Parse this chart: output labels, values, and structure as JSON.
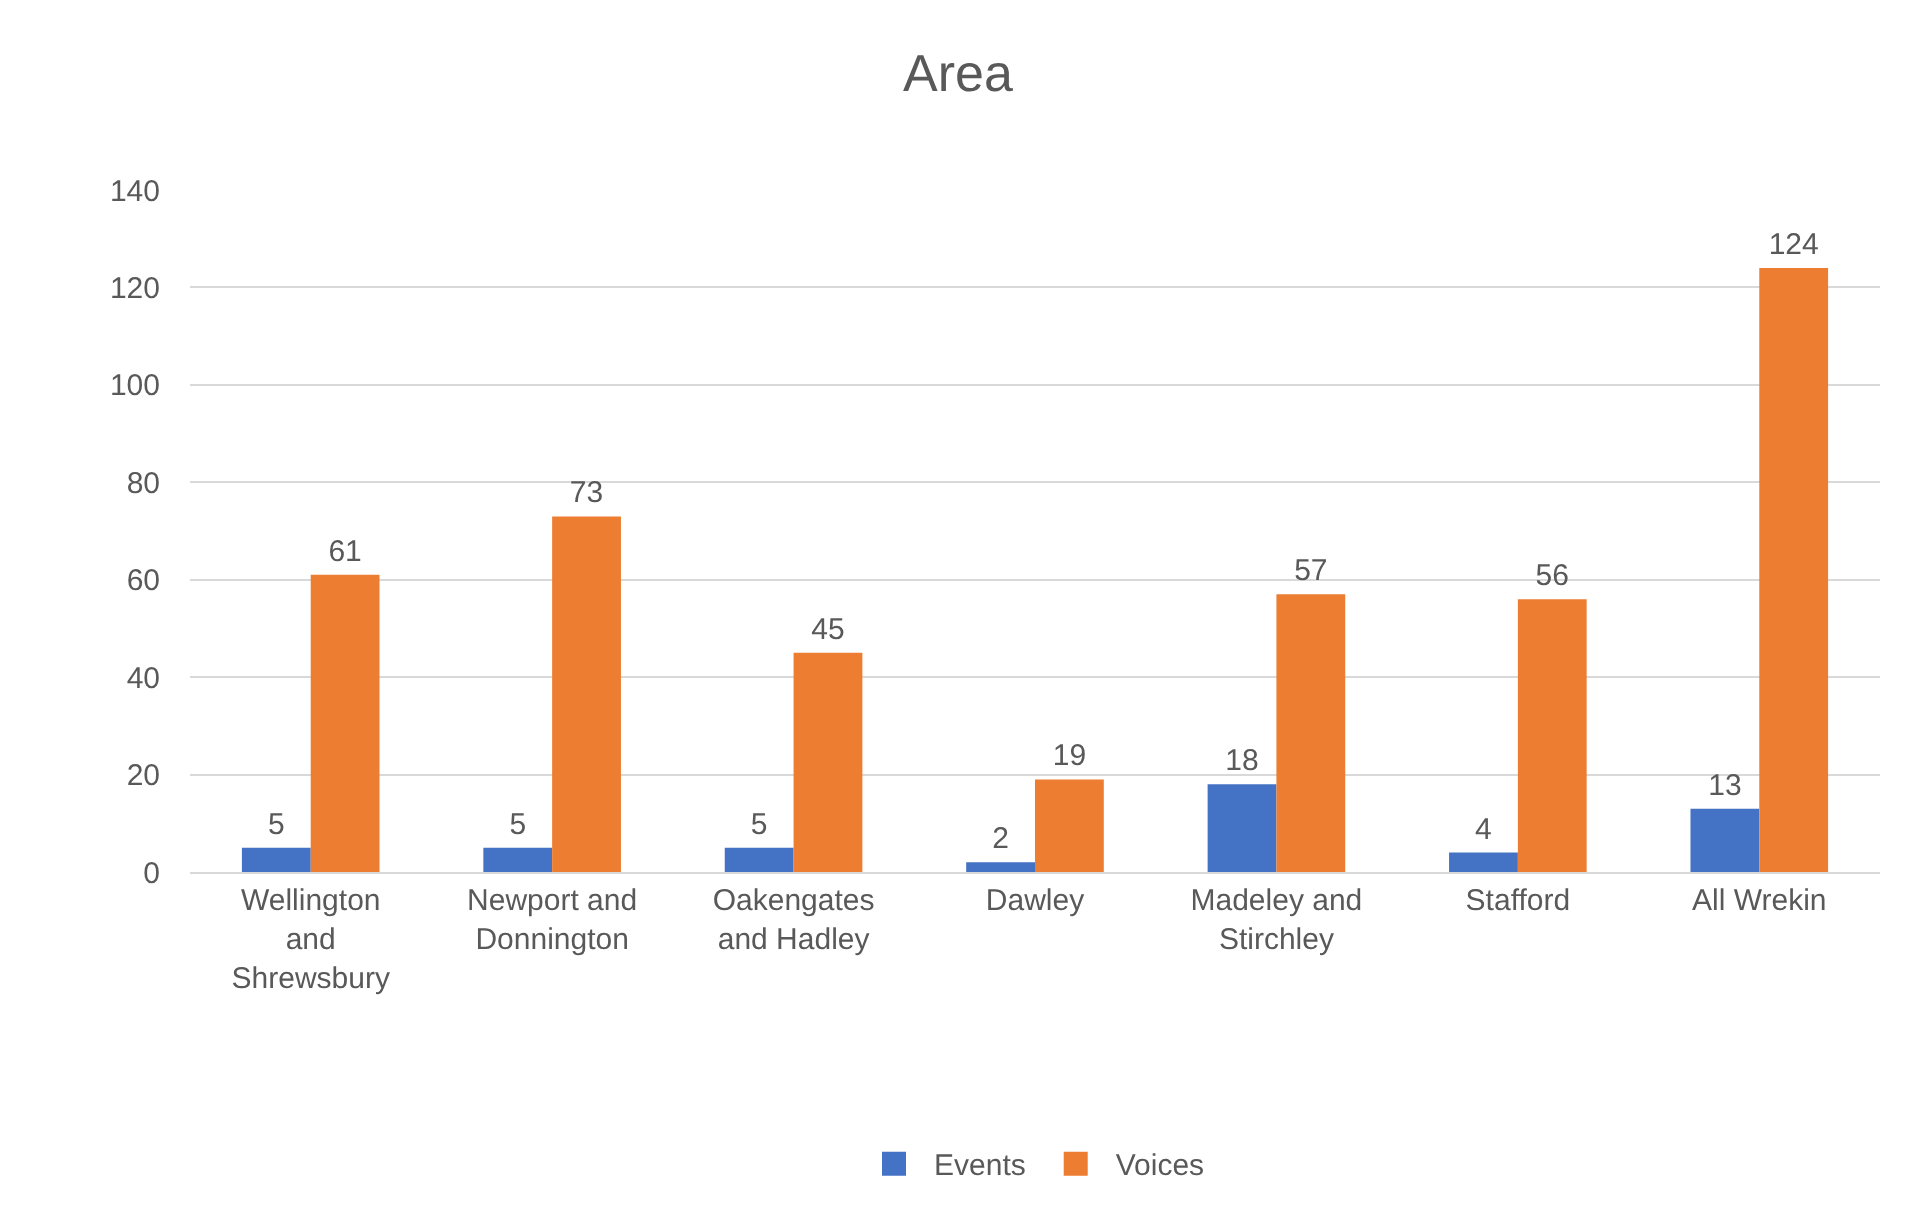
{
  "chart_data": {
    "type": "bar",
    "title": "Area",
    "categories": [
      "Wellington and Shrewsbury",
      "Newport and Donnington",
      "Oakengates and Hadley",
      "Dawley",
      "Madeley and Stirchley",
      "Stafford",
      "All Wrekin"
    ],
    "series": [
      {
        "name": "Events",
        "color": "#4472c4",
        "values": [
          5,
          5,
          5,
          2,
          18,
          4,
          13
        ]
      },
      {
        "name": "Voices",
        "color": "#ed7d31",
        "values": [
          61,
          73,
          45,
          19,
          57,
          56,
          124
        ]
      }
    ],
    "ylim": [
      0,
      140
    ],
    "yticks": [
      0,
      20,
      40,
      60,
      80,
      100,
      120,
      140
    ],
    "grid": "y",
    "legend": "bottom",
    "data_labels": true
  }
}
